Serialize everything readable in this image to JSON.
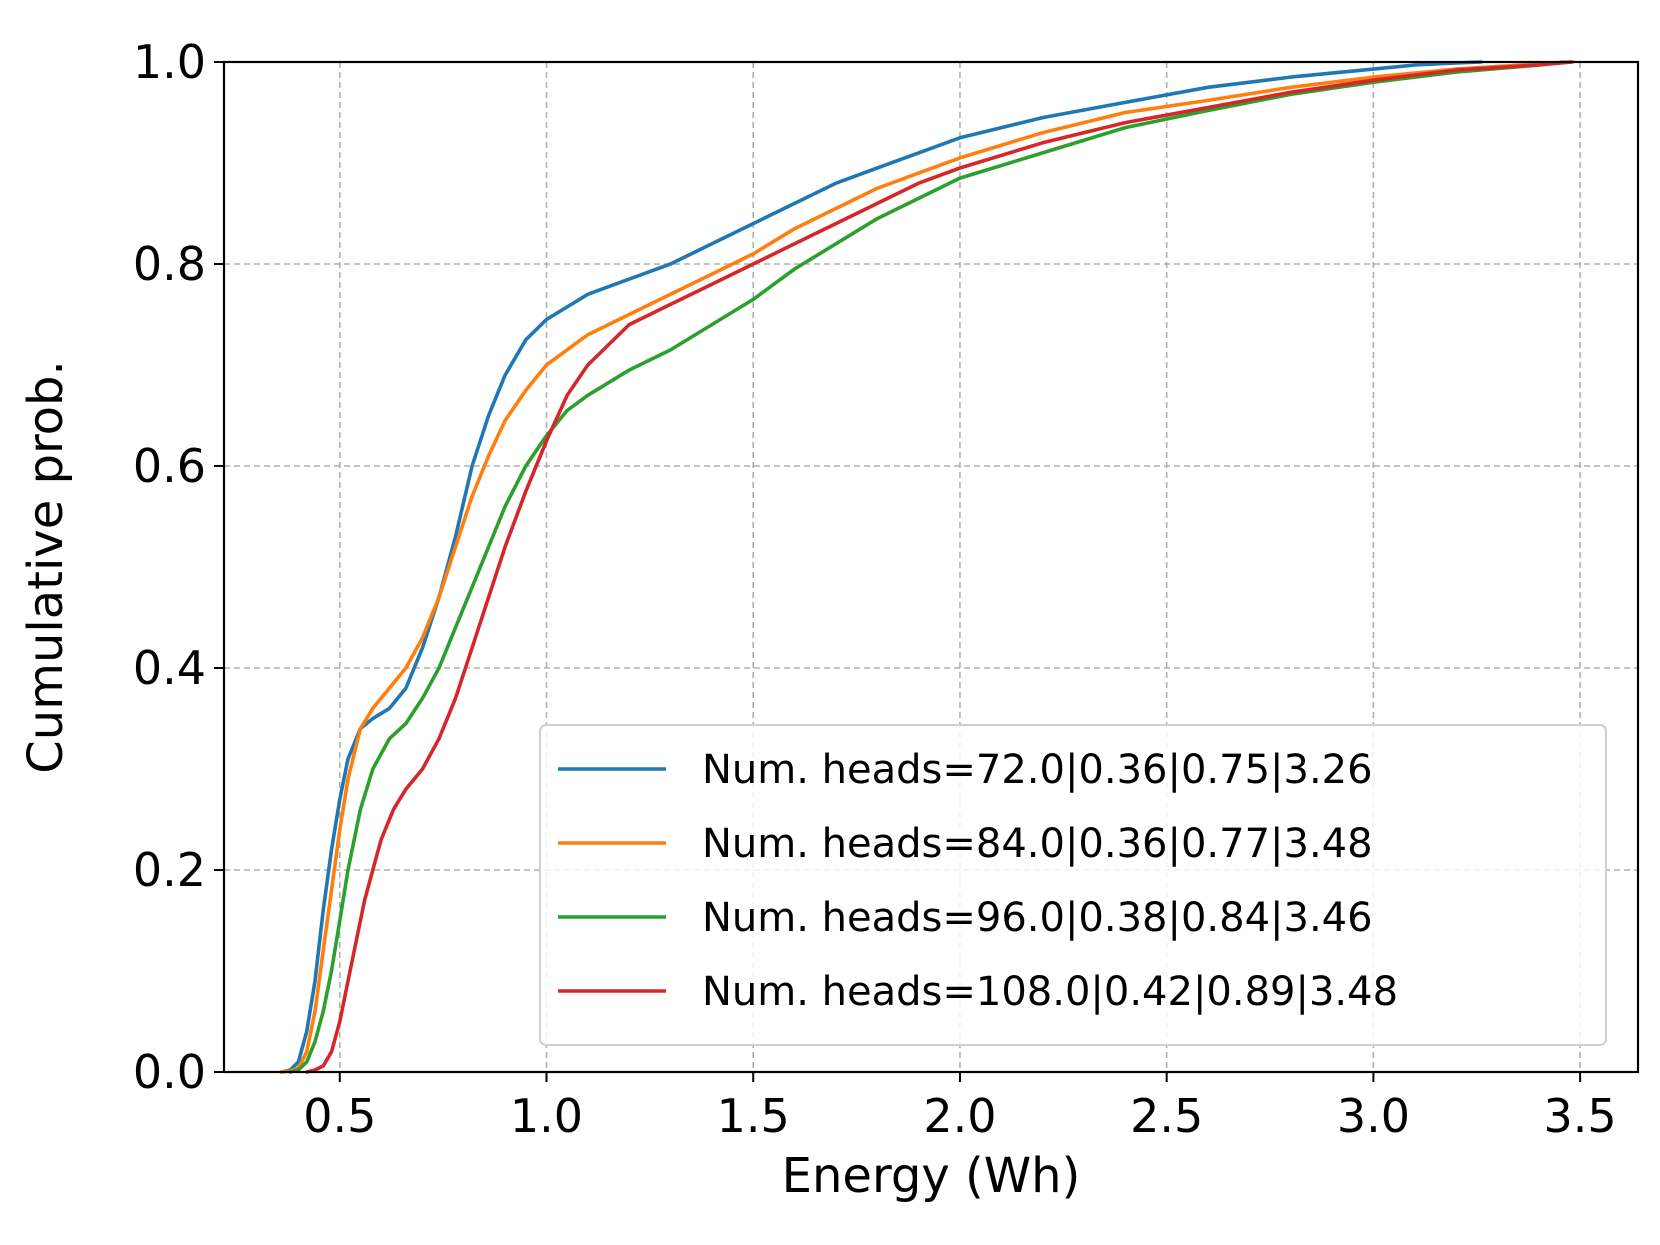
{
  "chart_data": {
    "type": "line",
    "title": "",
    "xlabel": "Energy (Wh)",
    "ylabel": "Cumulative prob.",
    "xlim": [
      0.22,
      3.64
    ],
    "ylim": [
      0.0,
      1.0
    ],
    "grid": true,
    "legend_position": "bottom-right",
    "x_ticks": [
      {
        "value": 0.5,
        "label": "0.5"
      },
      {
        "value": 1.0,
        "label": "1.0"
      },
      {
        "value": 1.5,
        "label": "1.5"
      },
      {
        "value": 2.0,
        "label": "2.0"
      },
      {
        "value": 2.5,
        "label": "2.5"
      },
      {
        "value": 3.0,
        "label": "3.0"
      },
      {
        "value": 3.5,
        "label": "3.5"
      }
    ],
    "y_ticks": [
      {
        "value": 0.0,
        "label": "0.0"
      },
      {
        "value": 0.2,
        "label": "0.2"
      },
      {
        "value": 0.4,
        "label": "0.4"
      },
      {
        "value": 0.6,
        "label": "0.6"
      },
      {
        "value": 0.8,
        "label": "0.8"
      },
      {
        "value": 1.0,
        "label": "1.0"
      }
    ],
    "series": [
      {
        "name": "Num. heads=72.0|0.36|0.75|3.26",
        "color": "#1f77b4",
        "x": [
          0.36,
          0.38,
          0.4,
          0.42,
          0.44,
          0.46,
          0.48,
          0.5,
          0.52,
          0.55,
          0.58,
          0.62,
          0.66,
          0.7,
          0.74,
          0.78,
          0.82,
          0.86,
          0.9,
          0.95,
          1.0,
          1.1,
          1.2,
          1.3,
          1.4,
          1.5,
          1.6,
          1.7,
          1.8,
          1.9,
          2.0,
          2.2,
          2.4,
          2.6,
          2.8,
          3.0,
          3.1,
          3.2,
          3.26
        ],
        "y": [
          0.0,
          0.002,
          0.01,
          0.04,
          0.09,
          0.16,
          0.22,
          0.27,
          0.31,
          0.34,
          0.35,
          0.36,
          0.38,
          0.42,
          0.47,
          0.53,
          0.6,
          0.65,
          0.69,
          0.725,
          0.745,
          0.77,
          0.785,
          0.8,
          0.82,
          0.84,
          0.86,
          0.88,
          0.895,
          0.91,
          0.925,
          0.945,
          0.96,
          0.975,
          0.985,
          0.993,
          0.997,
          0.999,
          1.0
        ]
      },
      {
        "name": "Num. heads=84.0|0.36|0.77|3.48",
        "color": "#ff7f0e",
        "x": [
          0.36,
          0.38,
          0.4,
          0.42,
          0.44,
          0.46,
          0.48,
          0.5,
          0.52,
          0.55,
          0.58,
          0.62,
          0.66,
          0.7,
          0.74,
          0.78,
          0.82,
          0.86,
          0.9,
          0.95,
          1.0,
          1.1,
          1.2,
          1.3,
          1.4,
          1.5,
          1.6,
          1.7,
          1.8,
          1.9,
          2.0,
          2.2,
          2.4,
          2.6,
          2.8,
          3.0,
          3.2,
          3.4,
          3.48
        ],
        "y": [
          0.0,
          0.001,
          0.004,
          0.02,
          0.06,
          0.12,
          0.18,
          0.24,
          0.29,
          0.34,
          0.36,
          0.38,
          0.4,
          0.43,
          0.47,
          0.52,
          0.57,
          0.61,
          0.645,
          0.675,
          0.7,
          0.73,
          0.75,
          0.77,
          0.79,
          0.81,
          0.835,
          0.855,
          0.875,
          0.89,
          0.905,
          0.93,
          0.95,
          0.962,
          0.975,
          0.985,
          0.993,
          0.998,
          1.0
        ]
      },
      {
        "name": "Num. heads=96.0|0.38|0.84|3.46",
        "color": "#2ca02c",
        "x": [
          0.38,
          0.4,
          0.42,
          0.44,
          0.46,
          0.48,
          0.5,
          0.52,
          0.55,
          0.58,
          0.62,
          0.66,
          0.7,
          0.74,
          0.78,
          0.82,
          0.86,
          0.9,
          0.95,
          1.0,
          1.05,
          1.1,
          1.2,
          1.3,
          1.4,
          1.5,
          1.6,
          1.7,
          1.8,
          1.9,
          2.0,
          2.2,
          2.4,
          2.6,
          2.8,
          3.0,
          3.2,
          3.4,
          3.46
        ],
        "y": [
          0.0,
          0.002,
          0.01,
          0.03,
          0.06,
          0.1,
          0.15,
          0.2,
          0.26,
          0.3,
          0.33,
          0.345,
          0.37,
          0.4,
          0.44,
          0.48,
          0.52,
          0.56,
          0.6,
          0.63,
          0.655,
          0.67,
          0.695,
          0.715,
          0.74,
          0.765,
          0.795,
          0.82,
          0.845,
          0.865,
          0.885,
          0.91,
          0.935,
          0.952,
          0.968,
          0.98,
          0.99,
          0.997,
          1.0
        ]
      },
      {
        "name": "Num. heads=108.0|0.42|0.89|3.48",
        "color": "#d62728",
        "x": [
          0.42,
          0.44,
          0.46,
          0.48,
          0.5,
          0.52,
          0.54,
          0.56,
          0.58,
          0.6,
          0.63,
          0.66,
          0.7,
          0.74,
          0.78,
          0.82,
          0.86,
          0.9,
          0.95,
          1.0,
          1.05,
          1.1,
          1.2,
          1.3,
          1.4,
          1.5,
          1.6,
          1.7,
          1.8,
          1.9,
          2.0,
          2.2,
          2.4,
          2.6,
          2.8,
          3.0,
          3.2,
          3.4,
          3.48
        ],
        "y": [
          0.0,
          0.002,
          0.006,
          0.02,
          0.05,
          0.09,
          0.13,
          0.17,
          0.2,
          0.23,
          0.26,
          0.28,
          0.3,
          0.33,
          0.37,
          0.42,
          0.47,
          0.52,
          0.575,
          0.625,
          0.67,
          0.7,
          0.74,
          0.76,
          0.78,
          0.8,
          0.82,
          0.84,
          0.86,
          0.88,
          0.895,
          0.92,
          0.94,
          0.955,
          0.97,
          0.982,
          0.992,
          0.997,
          1.0
        ]
      }
    ]
  }
}
